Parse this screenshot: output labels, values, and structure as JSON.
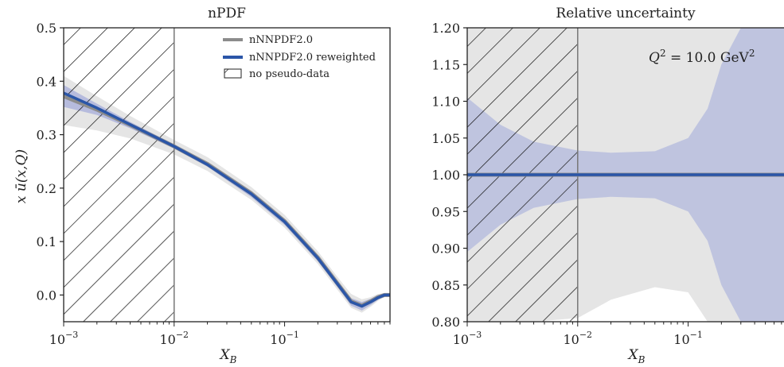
{
  "chart_data": [
    {
      "type": "line",
      "title": "nPDF",
      "xlabel": "X_B",
      "ylabel": "x ū(x,Q)",
      "xscale": "log",
      "xlim": [
        0.001,
        0.9
      ],
      "ylim": [
        -0.05,
        0.5
      ],
      "x_ticks": [
        {
          "value": 0.001,
          "base": "10",
          "exp": "−3"
        },
        {
          "value": 0.01,
          "base": "10",
          "exp": "−2"
        },
        {
          "value": 0.1,
          "base": "10",
          "exp": "−1"
        }
      ],
      "y_ticks": [
        {
          "value": 0.0,
          "label": "0.0"
        },
        {
          "value": 0.1,
          "label": "0.1"
        },
        {
          "value": 0.2,
          "label": "0.2"
        },
        {
          "value": 0.3,
          "label": "0.3"
        },
        {
          "value": 0.4,
          "label": "0.4"
        },
        {
          "value": 0.5,
          "label": "0.5"
        }
      ],
      "hatch_region": {
        "x": [
          0.001,
          0.01
        ],
        "label": "no pseudo-data"
      },
      "legend": {
        "position": "top-right"
      },
      "series": [
        {
          "name": "nNNPDF2.0",
          "color": "#8c8c8c",
          "band_color": "#e2e2e2",
          "x": [
            0.001,
            0.002,
            0.004,
            0.01,
            0.02,
            0.05,
            0.1,
            0.2,
            0.3,
            0.4,
            0.5,
            0.6,
            0.7,
            0.8,
            0.9
          ],
          "y": [
            0.372,
            0.347,
            0.318,
            0.278,
            0.245,
            0.19,
            0.138,
            0.07,
            0.022,
            -0.012,
            -0.02,
            -0.012,
            -0.004,
            0.0,
            0.0
          ],
          "upper": [
            0.41,
            0.372,
            0.335,
            0.29,
            0.258,
            0.202,
            0.15,
            0.082,
            0.034,
            0.002,
            -0.008,
            -0.004,
            0.002,
            0.003,
            0.002
          ],
          "lower": [
            0.318,
            0.308,
            0.293,
            0.263,
            0.232,
            0.178,
            0.126,
            0.058,
            0.01,
            -0.024,
            -0.033,
            -0.022,
            -0.011,
            -0.004,
            -0.002
          ]
        },
        {
          "name": "nNNPDF2.0 reweighted",
          "color": "#2b56a8",
          "band_color": "#aeb4dc",
          "x": [
            0.001,
            0.002,
            0.004,
            0.01,
            0.02,
            0.05,
            0.1,
            0.2,
            0.3,
            0.4,
            0.5,
            0.6,
            0.7,
            0.8,
            0.9
          ],
          "y": [
            0.378,
            0.35,
            0.319,
            0.278,
            0.244,
            0.189,
            0.137,
            0.069,
            0.021,
            -0.013,
            -0.021,
            -0.013,
            -0.005,
            0.0,
            0.0
          ],
          "upper": [
            0.393,
            0.358,
            0.324,
            0.282,
            0.249,
            0.195,
            0.143,
            0.075,
            0.027,
            -0.006,
            -0.013,
            -0.007,
            0.0,
            0.002,
            0.001
          ],
          "lower": [
            0.352,
            0.337,
            0.312,
            0.274,
            0.24,
            0.183,
            0.131,
            0.063,
            0.015,
            -0.02,
            -0.029,
            -0.019,
            -0.009,
            -0.003,
            -0.001
          ]
        }
      ]
    },
    {
      "type": "line",
      "title": "Relative uncertainty",
      "xlabel": "X_B",
      "ylabel": "",
      "xscale": "log",
      "xlim": [
        0.001,
        0.9
      ],
      "ylim": [
        0.8,
        1.2
      ],
      "x_ticks": [
        {
          "value": 0.001,
          "base": "10",
          "exp": "−3"
        },
        {
          "value": 0.01,
          "base": "10",
          "exp": "−2"
        },
        {
          "value": 0.1,
          "base": "10",
          "exp": "−1"
        }
      ],
      "y_ticks": [
        {
          "value": 0.8,
          "label": "0.80"
        },
        {
          "value": 0.85,
          "label": "0.85"
        },
        {
          "value": 0.9,
          "label": "0.90"
        },
        {
          "value": 0.95,
          "label": "0.95"
        },
        {
          "value": 1.0,
          "label": "1.00"
        },
        {
          "value": 1.05,
          "label": "1.05"
        },
        {
          "value": 1.1,
          "label": "1.10"
        },
        {
          "value": 1.15,
          "label": "1.15"
        },
        {
          "value": 1.2,
          "label": "1.20"
        }
      ],
      "hatch_region": {
        "x": [
          0.001,
          0.01
        ]
      },
      "annotation": {
        "prefix": "Q",
        "power": "2",
        "text": " = 10.0 GeV",
        "unit_power": "2",
        "position": "top-right"
      },
      "series": [
        {
          "name": "nNNPDF2.0",
          "color": "#8c8c8c",
          "band_color": "#e2e2e2",
          "x": [
            0.001,
            0.002,
            0.004,
            0.01,
            0.02,
            0.05,
            0.1,
            0.15,
            0.2,
            0.3,
            0.4,
            0.5,
            0.6,
            0.7,
            0.8,
            0.9
          ],
          "y": [
            1.0,
            1.0,
            1.0,
            1.0,
            1.0,
            1.0,
            1.0,
            1.0,
            1.0,
            1.0,
            1.0,
            1.0,
            1.0,
            1.0,
            1.0,
            1.0
          ],
          "upper": [
            1.2,
            1.2,
            1.2,
            1.2,
            1.2,
            1.2,
            1.2,
            1.2,
            1.2,
            1.2,
            1.2,
            1.2,
            1.2,
            1.2,
            1.2,
            1.2
          ],
          "lower": [
            0.8,
            0.8,
            0.8,
            0.805,
            0.83,
            0.847,
            0.84,
            0.8,
            0.8,
            0.8,
            0.8,
            0.8,
            0.8,
            0.8,
            0.8,
            0.8
          ]
        },
        {
          "name": "nNNPDF2.0 reweighted",
          "color": "#2b56a8",
          "band_color": "#b9bede",
          "x": [
            0.001,
            0.002,
            0.004,
            0.01,
            0.02,
            0.05,
            0.1,
            0.15,
            0.2,
            0.3,
            0.4,
            0.5,
            0.6,
            0.7,
            0.8,
            0.9
          ],
          "y": [
            1.0,
            1.0,
            1.0,
            1.0,
            1.0,
            1.0,
            1.0,
            1.0,
            1.0,
            1.0,
            1.0,
            1.0,
            1.0,
            1.0,
            1.0,
            1.0
          ],
          "upper": [
            1.105,
            1.068,
            1.045,
            1.033,
            1.03,
            1.032,
            1.05,
            1.09,
            1.15,
            1.2,
            1.2,
            1.2,
            1.2,
            1.2,
            1.2,
            1.2
          ],
          "lower": [
            0.895,
            0.932,
            0.955,
            0.967,
            0.97,
            0.968,
            0.95,
            0.91,
            0.85,
            0.8,
            0.8,
            0.8,
            0.8,
            0.8,
            0.8,
            0.8
          ]
        }
      ]
    }
  ]
}
